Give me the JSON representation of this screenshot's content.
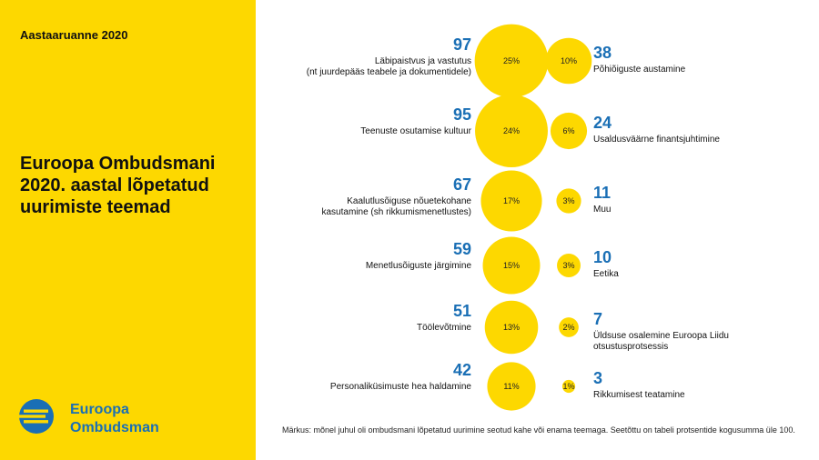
{
  "header": {
    "report_label": "Aastaaruanne 2020"
  },
  "title": "Euroopa Ombudsmani\n2020. aastal lõpetatud\nuurimiste teemad",
  "logo": {
    "name": "Euroopa\nOmbudsman",
    "color": "#1a6fb5"
  },
  "note": "Märkus: mõnel juhul oli ombudsmani lõpetatud uurimine seotud kahe või enama teemaga. Seetõttu on tabeli protsentide kogusumma üle 100.",
  "colors": {
    "bubble": "#FDD800",
    "count": "#1a6fb5",
    "sidebar": "#FDD800"
  },
  "chart_data": {
    "type": "bubble",
    "left": [
      {
        "count": "97",
        "percent": "25%",
        "label": [
          "Läbipaistvus ja vastutus",
          "(nt juurdepääs teabele ja dokumentidele)"
        ],
        "value": 97
      },
      {
        "count": "95",
        "percent": "24%",
        "label": [
          "Teenuste osutamise kultuur"
        ],
        "value": 95
      },
      {
        "count": "67",
        "percent": "17%",
        "label": [
          "Kaalutlusõiguse nõuetekohane",
          "kasutamine (sh rikkumismenetlustes)"
        ],
        "value": 67
      },
      {
        "count": "59",
        "percent": "15%",
        "label": [
          "Menetlusõiguste järgimine"
        ],
        "value": 59
      },
      {
        "count": "51",
        "percent": "13%",
        "label": [
          "Töölevõtmine"
        ],
        "value": 51
      },
      {
        "count": "42",
        "percent": "11%",
        "label": [
          "Personaliküsimuste hea haldamine"
        ],
        "value": 42
      }
    ],
    "right": [
      {
        "count": "38",
        "percent": "10%",
        "label": [
          "Põhiõiguste austamine"
        ],
        "value": 38
      },
      {
        "count": "24",
        "percent": "6%",
        "label": [
          "Usaldusväärne finantsjuhtimine"
        ],
        "value": 24
      },
      {
        "count": "11",
        "percent": "3%",
        "label": [
          "Muu"
        ],
        "value": 11
      },
      {
        "count": "10",
        "percent": "3%",
        "label": [
          "Eetika"
        ],
        "value": 10
      },
      {
        "count": "7",
        "percent": "2%",
        "label": [
          "Üldsuse osalemine Euroopa Liidu",
          "otsustusprotsessis"
        ],
        "value": 7
      },
      {
        "count": "3",
        "percent": "1%",
        "label": [
          "Rikkumisest teatamine"
        ],
        "value": 3
      }
    ]
  }
}
